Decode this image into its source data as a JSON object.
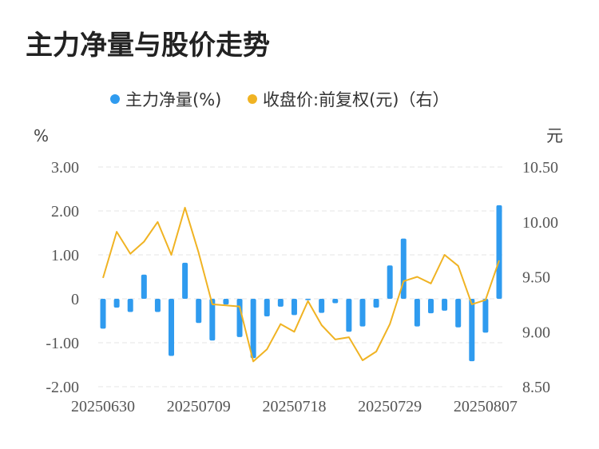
{
  "chart_data": {
    "type": "bar",
    "title": "主力净量与股价走势",
    "legend": [
      {
        "label": "主力净量(%)",
        "color": "#2f9bef",
        "marker": "dot"
      },
      {
        "label": "收盘价:前复权(元)（右）",
        "color": "#f0b323",
        "marker": "dot"
      }
    ],
    "legend_position": "top-center",
    "grid": true,
    "left_axis": {
      "unit": "%",
      "min": -2.0,
      "max": 3.0,
      "ticks": [
        3.0,
        2.0,
        1.0,
        0,
        -1.0,
        -2.0
      ],
      "tick_labels": [
        "3.00",
        "2.00",
        "1.00",
        "0",
        "-1.00",
        "-2.00"
      ]
    },
    "right_axis": {
      "unit": "元",
      "min": 8.5,
      "max": 10.5,
      "ticks": [
        10.5,
        10.0,
        9.5,
        9.0,
        8.5
      ],
      "tick_labels": [
        "10.50",
        "10.00",
        "9.50",
        "9.00",
        "8.50"
      ]
    },
    "x_tick_labels": [
      {
        "index": 0,
        "label": "20250630"
      },
      {
        "index": 7,
        "label": "20250709"
      },
      {
        "index": 14,
        "label": "20250718"
      },
      {
        "index": 21,
        "label": "20250729"
      },
      {
        "index": 28,
        "label": "20250807"
      }
    ],
    "series": [
      {
        "name": "主力净量(%)",
        "type": "bar",
        "axis": "left",
        "color": "#2f9bef",
        "values": [
          -0.68,
          -0.2,
          -0.3,
          0.55,
          -0.3,
          -1.3,
          0.82,
          -0.55,
          -0.95,
          -0.13,
          -0.87,
          -1.35,
          -0.4,
          -0.18,
          -0.37,
          -0.03,
          -0.32,
          -0.1,
          -0.75,
          -0.63,
          -0.2,
          0.76,
          1.37,
          -0.63,
          -0.33,
          -0.27,
          -0.65,
          -1.42,
          -0.77,
          2.13
        ]
      },
      {
        "name": "收盘价:前复权(元)（右）",
        "type": "line",
        "axis": "right",
        "color": "#f0b323",
        "values": [
          9.49,
          9.91,
          9.71,
          9.82,
          10.0,
          9.7,
          10.13,
          9.72,
          9.25,
          9.24,
          9.23,
          8.73,
          8.84,
          9.07,
          9.0,
          9.28,
          9.06,
          8.93,
          8.95,
          8.74,
          8.82,
          9.07,
          9.46,
          9.5,
          9.44,
          9.7,
          9.6,
          9.25,
          9.29,
          9.65
        ]
      }
    ]
  }
}
